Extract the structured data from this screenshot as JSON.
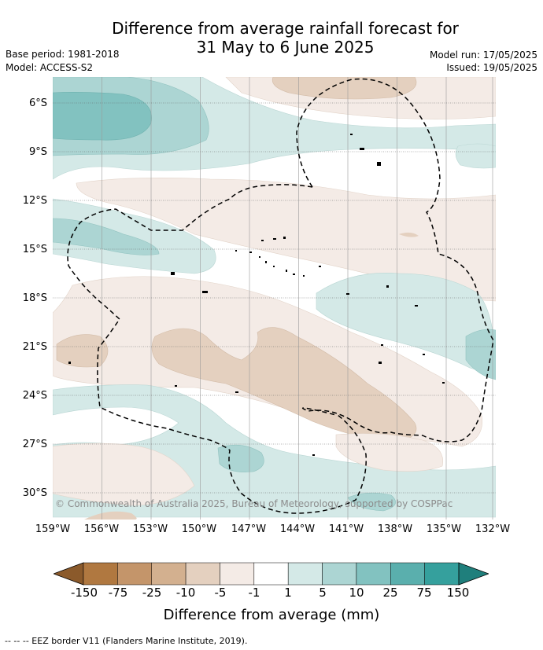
{
  "title_line1": "Difference from average rainfall forecast for",
  "title_line2": "31 May to 6 June 2025",
  "meta": {
    "base_period": "Base period: 1981-2018",
    "model": "Model: ACCESS-S2",
    "model_run": "Model run: 17/05/2025",
    "issued": "Issued: 19/05/2025"
  },
  "lat_ticks": [
    "6°S",
    "9°S",
    "12°S",
    "15°S",
    "18°S",
    "21°S",
    "24°S",
    "27°S",
    "30°S"
  ],
  "lon_ticks": [
    "159°W",
    "156°W",
    "153°W",
    "150°W",
    "147°W",
    "144°W",
    "141°W",
    "138°W",
    "135°W",
    "132°W"
  ],
  "copyright": "© Commonwealth of Australia 2025, Bureau of Meteorology, supported by COSPPac",
  "colorbar": {
    "labels": [
      "-150",
      "-75",
      "-25",
      "-10",
      "-5",
      "-1",
      "1",
      "5",
      "10",
      "25",
      "75",
      "150"
    ],
    "colors": [
      "#8b5a2b",
      "#b07840",
      "#c4956a",
      "#d3b08f",
      "#e4d0bf",
      "#f4ebe6",
      "#ffffff",
      "#d4e9e7",
      "#acd5d3",
      "#82c2c0",
      "#5aafad",
      "#35a09d",
      "#1f7f7c"
    ],
    "title": "Difference from average (mm)"
  },
  "colors": {
    "brown_light": "#f4ebe6",
    "brown_mid": "#e4d0bf",
    "teal_light": "#d4e9e7",
    "teal_mid": "#acd5d3",
    "teal_dark": "#82c2c0"
  },
  "footnote": "-- -- -- EEZ border V11 (Flanders Marine Institute, 2019)."
}
